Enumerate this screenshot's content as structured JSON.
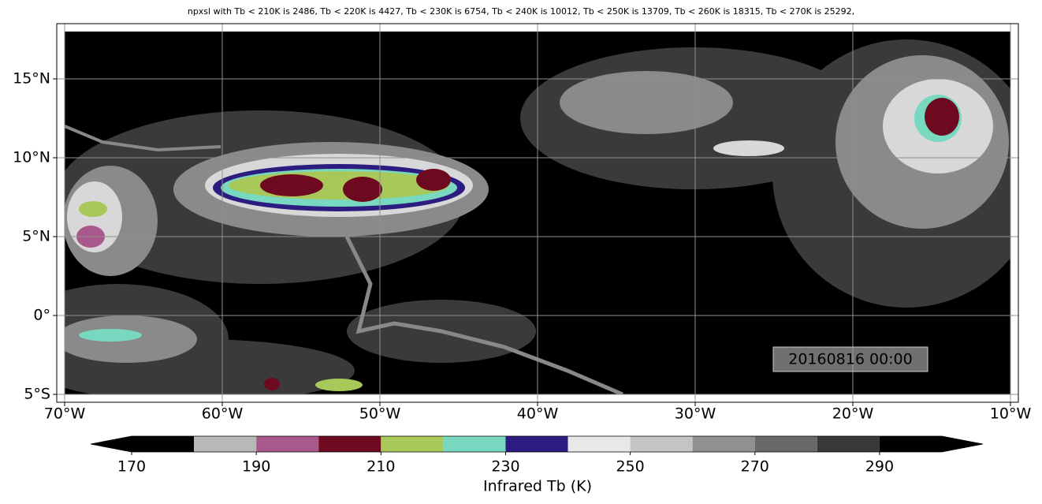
{
  "map": {
    "title": "npxsl with Tb < 210K is 2486,  Tb < 220K is 4427,  Tb < 230K is 6754,  Tb < 240K is 10012,  Tb < 250K is 13709,  Tb < 260K is 18315,  Tb < 270K is 25292,",
    "xlim": [
      -70.5,
      -9.5
    ],
    "ylim": [
      -5.5,
      18.5
    ],
    "xticks": [
      {
        "value": -70,
        "label": "70°W"
      },
      {
        "value": -60,
        "label": "60°W"
      },
      {
        "value": -50,
        "label": "50°W"
      },
      {
        "value": -40,
        "label": "40°W"
      },
      {
        "value": -30,
        "label": "30°W"
      },
      {
        "value": -20,
        "label": "20°W"
      },
      {
        "value": -10,
        "label": "10°W"
      }
    ],
    "yticks": [
      {
        "value": -5,
        "label": "5°S"
      },
      {
        "value": 0,
        "label": "0°"
      },
      {
        "value": 5,
        "label": "5°N"
      },
      {
        "value": 10,
        "label": "10°N"
      },
      {
        "value": 15,
        "label": "15°N"
      }
    ],
    "grid": true,
    "annotation": "20160816 00:00"
  },
  "colorbar": {
    "label": "Infrared Tb (K)",
    "bounds": [
      170,
      180,
      190,
      200,
      210,
      220,
      230,
      240,
      250,
      260,
      270,
      280,
      290,
      300
    ],
    "colors": [
      "#000000",
      "#b8b8b8",
      "#a8588a",
      "#6e0a20",
      "#a8c85a",
      "#78d8c0",
      "#2c1c80",
      "#e8e8e8",
      "#c4c4c4",
      "#909090",
      "#686868",
      "#383838",
      "#000000"
    ],
    "ticks": [
      170,
      190,
      210,
      230,
      250,
      270,
      290
    ],
    "extend": "both"
  }
}
